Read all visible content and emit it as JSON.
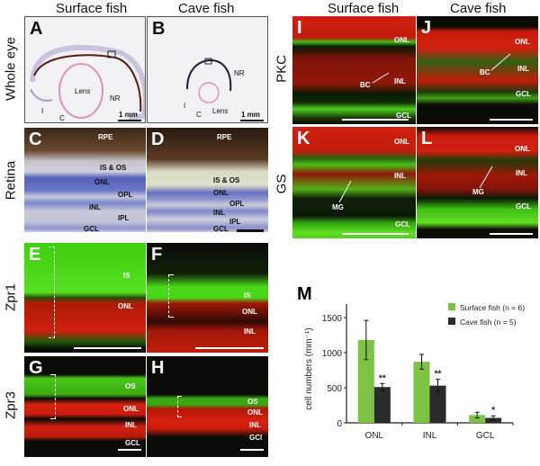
{
  "left": {
    "col_headers": [
      "Surface fish",
      "Cave fish"
    ],
    "row_labels": [
      "Whole eye",
      "Retina",
      "Zpr1",
      "Zpr3"
    ],
    "panels": {
      "A": {
        "letter": "A",
        "labels": [
          "Lens",
          "NR",
          "I",
          "C"
        ],
        "scale": "1 mm"
      },
      "B": {
        "letter": "B",
        "labels": [
          "NR",
          "I",
          "C",
          "Lens"
        ],
        "scale": "1 mm"
      },
      "C": {
        "letter": "C",
        "labels": [
          "RPE",
          "IS & OS",
          "ONL",
          "OPL",
          "INL",
          "IPL",
          "GCL"
        ]
      },
      "D": {
        "letter": "D",
        "labels": [
          "RPE",
          "IS & OS",
          "ONL",
          "OPL",
          "INL",
          "IPL",
          "GCL"
        ]
      },
      "E": {
        "letter": "E",
        "labels": [
          "IS",
          "ONL"
        ]
      },
      "F": {
        "letter": "F",
        "labels": [
          "IS",
          "ONL",
          "INL"
        ]
      },
      "G": {
        "letter": "G",
        "labels": [
          "OS",
          "ONL",
          "INL",
          "GCL"
        ]
      },
      "H": {
        "letter": "H",
        "labels": [
          "OS",
          "ONL",
          "INL",
          "GCl"
        ]
      }
    }
  },
  "right": {
    "col_headers": [
      "Surface fish",
      "Cave fish"
    ],
    "row_labels": [
      "PKC",
      "GS"
    ],
    "panels": {
      "I": {
        "letter": "I",
        "labels": [
          "ONL",
          "BC",
          "INL",
          "GCL"
        ]
      },
      "J": {
        "letter": "J",
        "labels": [
          "ONL",
          "BC",
          "INL",
          "GCL"
        ]
      },
      "K": {
        "letter": "K",
        "labels": [
          "ONL",
          "INL",
          "MG",
          "GCL"
        ]
      },
      "L": {
        "letter": "L",
        "labels": [
          "ONL",
          "INL",
          "MG",
          "GCL"
        ]
      }
    }
  },
  "chart_data": {
    "panel_letter": "M",
    "type": "bar",
    "categories": [
      "ONL",
      "INL",
      "GCL"
    ],
    "series": [
      {
        "name": "Surface fish (n = 6)",
        "color": "#7dc242",
        "values": [
          1180,
          870,
          110
        ],
        "errors": [
          280,
          105,
          40
        ]
      },
      {
        "name": "Cave fish (n = 5)",
        "color": "#2b2b2b",
        "values": [
          510,
          530,
          70
        ],
        "errors": [
          50,
          90,
          30
        ]
      }
    ],
    "significance": [
      "**",
      "**",
      "*"
    ],
    "ylabel": "cell numbers (mm⁻¹)",
    "yticks": [
      0,
      500,
      1000,
      1500
    ],
    "ylim": [
      0,
      1700
    ],
    "legend": "top-right"
  }
}
